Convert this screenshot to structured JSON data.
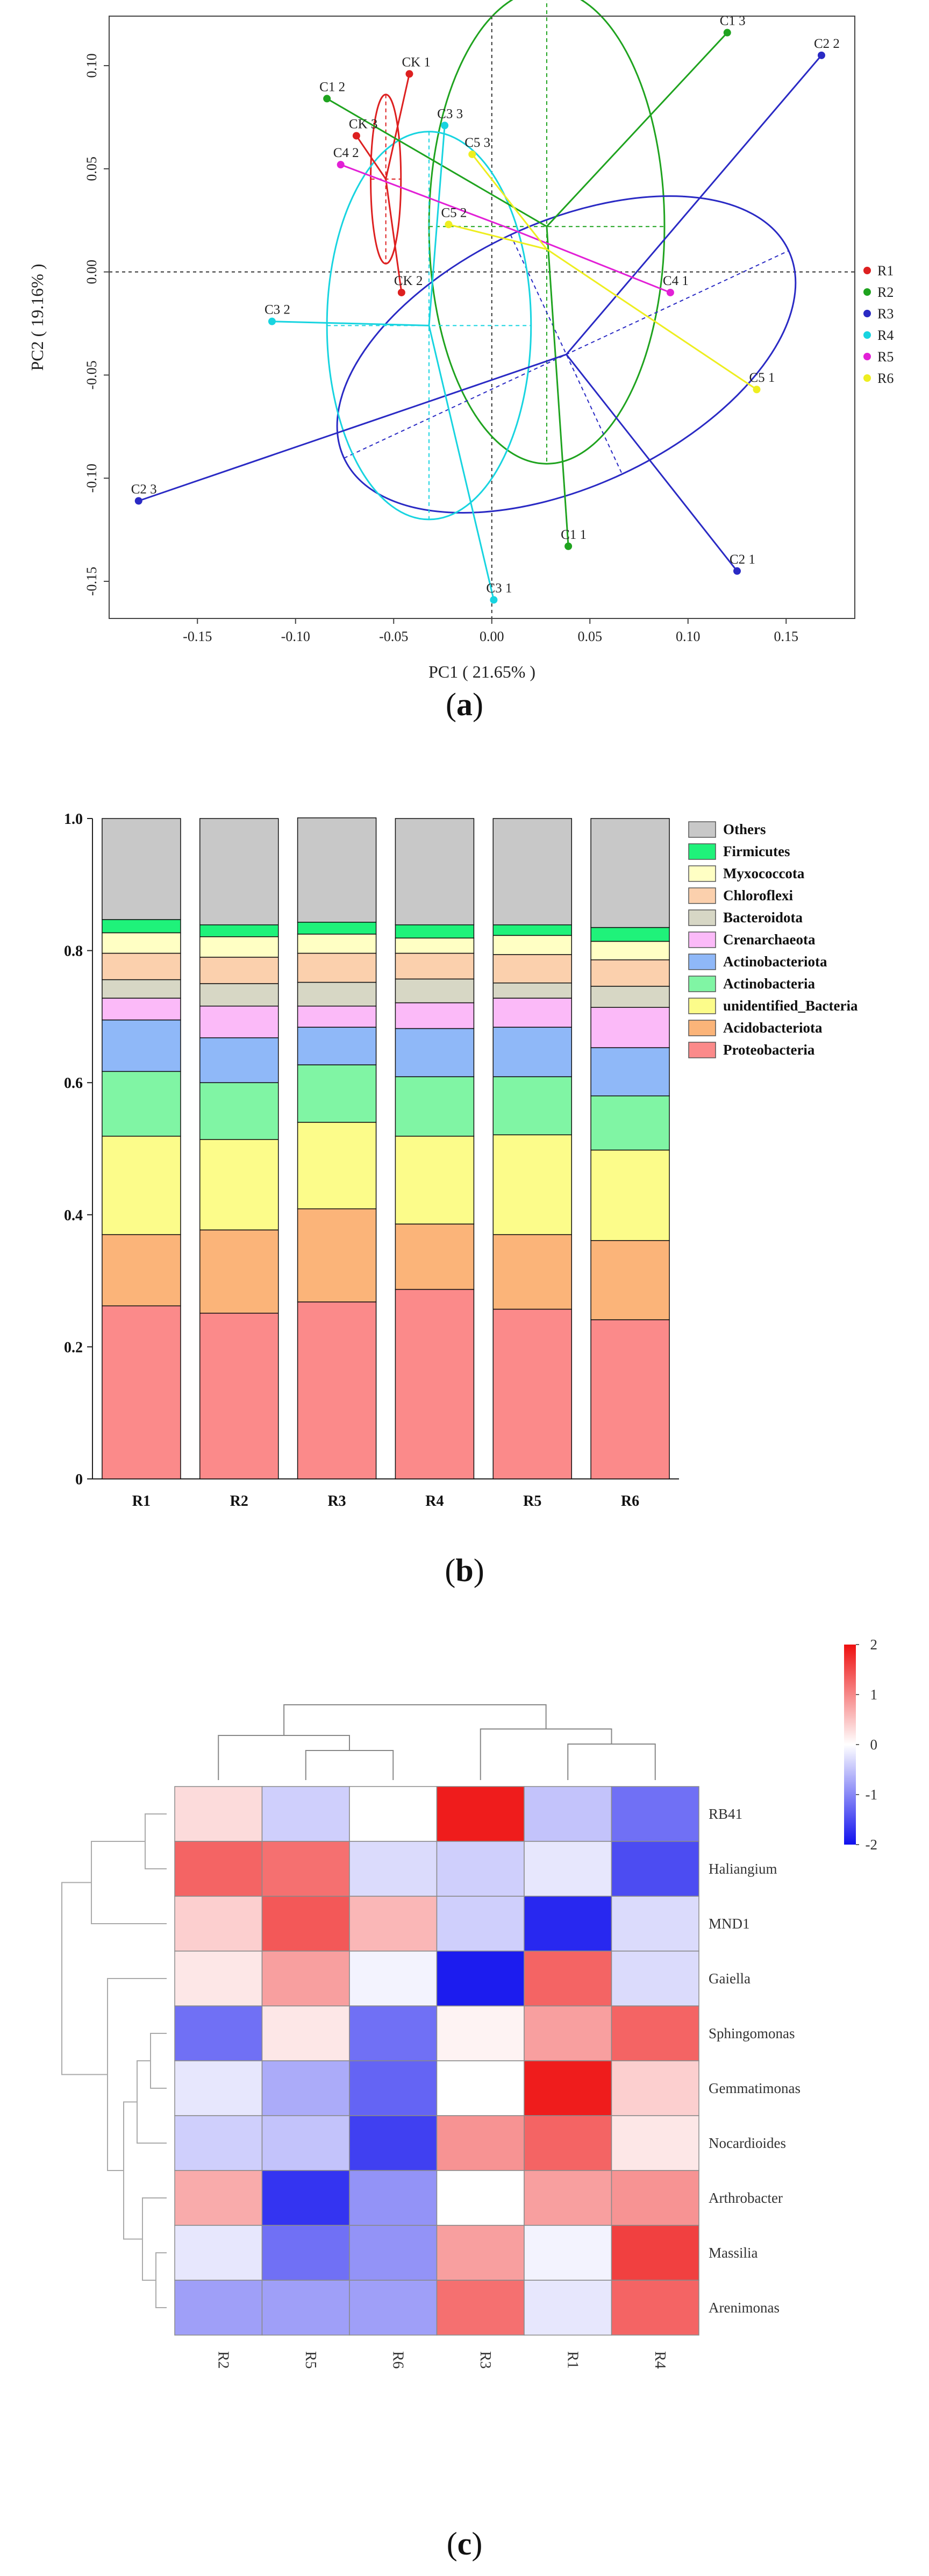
{
  "panels": {
    "a": {
      "caption_open": "(",
      "caption_letter": "a",
      "caption_close": ")",
      "chart_data": {
        "type": "scatter",
        "xlabel": "PC1 ( 21.65% )",
        "ylabel": "PC2 ( 19.16% )",
        "xlim": [
          -0.195,
          0.185
        ],
        "ylim": [
          -0.168,
          0.124
        ],
        "xticks": [
          -0.15,
          -0.1,
          -0.05,
          0.0,
          0.05,
          0.1,
          0.15
        ],
        "xtick_labels": [
          "-0.15",
          "-0.10",
          "-0.05",
          "0.00",
          "0.05",
          "0.10",
          "0.15"
        ],
        "yticks": [
          0.1,
          0.05,
          0.0,
          -0.05,
          -0.1,
          -0.15
        ],
        "ytick_labels": [
          "0.10",
          "0.05",
          "0.00",
          "-0.05",
          "-0.10",
          "-0.15"
        ],
        "grid": false,
        "legend_position": "right",
        "groups": [
          {
            "name": "R1",
            "color": "#dd2020",
            "centroid": [
              -0.054,
              0.045
            ],
            "ellipse": {
              "rx": 0.0077,
              "ry": 0.041,
              "angle": 0
            },
            "points": [
              {
                "label": "CK 1",
                "x": -0.042,
                "y": 0.096
              },
              {
                "label": "CK 3",
                "x": -0.069,
                "y": 0.066
              },
              {
                "label": "CK 2",
                "x": -0.046,
                "y": -0.01
              }
            ]
          },
          {
            "name": "R2",
            "color": "#1fa31f",
            "centroid": [
              0.028,
              0.022
            ],
            "ellipse": {
              "rx": 0.06,
              "ry": 0.115,
              "angle": 0
            },
            "points": [
              {
                "label": "C1 3",
                "x": 0.12,
                "y": 0.116
              },
              {
                "label": "C1 2",
                "x": -0.084,
                "y": 0.084
              },
              {
                "label": "C1 1",
                "x": 0.039,
                "y": -0.133
              }
            ]
          },
          {
            "name": "R3",
            "color": "#2a2ac4",
            "centroid": [
              0.038,
              -0.04
            ],
            "ellipse": {
              "rx": 0.125,
              "ry": 0.064,
              "angle": -25
            },
            "points": [
              {
                "label": "C2 2",
                "x": 0.168,
                "y": 0.105
              },
              {
                "label": "C2 1",
                "x": 0.125,
                "y": -0.145
              },
              {
                "label": "C2 3",
                "x": -0.18,
                "y": -0.111
              }
            ]
          },
          {
            "name": "R4",
            "color": "#18d4e0",
            "centroid": [
              -0.032,
              -0.026
            ],
            "ellipse": {
              "rx": 0.052,
              "ry": 0.094,
              "angle": 0
            },
            "points": [
              {
                "label": "C3 3",
                "x": -0.024,
                "y": 0.071
              },
              {
                "label": "C3 2",
                "x": -0.112,
                "y": -0.024
              },
              {
                "label": "C3 1",
                "x": 0.001,
                "y": -0.159
              }
            ]
          },
          {
            "name": "R5",
            "color": "#e220d6",
            "centroid": [
              0.012,
              0.02
            ],
            "ellipse": null,
            "points": [
              {
                "label": "C4 2",
                "x": -0.077,
                "y": 0.052
              },
              {
                "label": "C4 1",
                "x": 0.091,
                "y": -0.01
              }
            ]
          },
          {
            "name": "R6",
            "color": "#eeee20",
            "centroid": [
              0.028,
              0.011
            ],
            "ellipse": null,
            "points": [
              {
                "label": "C5 3",
                "x": -0.01,
                "y": 0.057
              },
              {
                "label": "C5 2",
                "x": -0.022,
                "y": 0.023
              },
              {
                "label": "C5 1",
                "x": 0.135,
                "y": -0.057
              }
            ]
          }
        ]
      }
    },
    "b": {
      "caption_open": "(",
      "caption_letter": "b",
      "caption_close": ")",
      "chart_data": {
        "type": "bar",
        "stacked": true,
        "categories": [
          "R1",
          "R2",
          "R3",
          "R4",
          "R5",
          "R6"
        ],
        "ylim": [
          0,
          1
        ],
        "yticks": [
          0,
          0.2,
          0.4,
          0.6,
          0.8,
          1.0
        ],
        "ytick_labels": [
          "0",
          "0.2",
          "0.4",
          "0.6",
          "0.8",
          "1.0"
        ],
        "legend_position": "right",
        "series": [
          {
            "name": "Proteobacteria",
            "color": "#fb8a8a",
            "values": [
              0.262,
              0.251,
              0.268,
              0.287,
              0.257,
              0.241
            ]
          },
          {
            "name": "Acidobacteriota",
            "color": "#fbb479",
            "values": [
              0.108,
              0.126,
              0.141,
              0.099,
              0.113,
              0.12
            ]
          },
          {
            "name": "unidentified_Bacteria",
            "color": "#fcfc8a",
            "values": [
              0.149,
              0.137,
              0.131,
              0.133,
              0.151,
              0.137
            ]
          },
          {
            "name": "Actinobacteria",
            "color": "#80f5a4",
            "values": [
              0.098,
              0.086,
              0.087,
              0.09,
              0.088,
              0.082
            ]
          },
          {
            "name": "Actinobacteriota",
            "color": "#8fb8f8",
            "values": [
              0.078,
              0.068,
              0.057,
              0.073,
              0.075,
              0.073
            ]
          },
          {
            "name": "Crenarchaeota",
            "color": "#fbbaf8",
            "values": [
              0.033,
              0.048,
              0.032,
              0.039,
              0.044,
              0.061
            ]
          },
          {
            "name": "Bacteroidota",
            "color": "#d7d7c5",
            "values": [
              0.028,
              0.034,
              0.036,
              0.036,
              0.023,
              0.032
            ]
          },
          {
            "name": "Chloroflexi",
            "color": "#fbd0ad",
            "values": [
              0.04,
              0.04,
              0.044,
              0.039,
              0.043,
              0.04
            ]
          },
          {
            "name": "Myxococcota",
            "color": "#ffffc4",
            "values": [
              0.031,
              0.031,
              0.029,
              0.023,
              0.029,
              0.028
            ]
          },
          {
            "name": "Firmicutes",
            "color": "#1ff27a",
            "values": [
              0.02,
              0.018,
              0.018,
              0.02,
              0.016,
              0.021
            ]
          },
          {
            "name": "Others",
            "color": "#c8c8c8",
            "values": [
              0.153,
              0.161,
              0.158,
              0.161,
              0.161,
              0.165
            ]
          }
        ]
      }
    },
    "c": {
      "caption_open": "(",
      "caption_letter": "c",
      "caption_close": ")",
      "chart_data": {
        "type": "heatmap",
        "columns": [
          "R2",
          "R5",
          "R6",
          "R3",
          "R1",
          "R4"
        ],
        "rows": [
          "RB41",
          "Haliangium",
          "MND1",
          "Gaiella",
          "Sphingomonas",
          "Gemmatimonas",
          "Nocardioides",
          "Arthrobacter",
          "Massilia",
          "Arenimonas"
        ],
        "values": [
          [
            0.3,
            -0.4,
            0.0,
            1.9,
            -0.5,
            -1.2
          ],
          [
            1.3,
            1.2,
            -0.3,
            -0.4,
            -0.2,
            -1.5
          ],
          [
            0.4,
            1.4,
            0.6,
            -0.4,
            -1.8,
            -0.3
          ],
          [
            0.2,
            0.8,
            -0.1,
            -1.9,
            1.3,
            -0.3
          ],
          [
            -1.2,
            0.2,
            -1.2,
            0.1,
            0.8,
            1.3
          ],
          [
            -0.2,
            -0.7,
            -1.3,
            0.0,
            1.9,
            0.4
          ],
          [
            -0.4,
            -0.5,
            -1.6,
            0.9,
            1.3,
            0.2
          ],
          [
            0.7,
            -1.7,
            -0.9,
            0.0,
            0.8,
            0.9
          ],
          [
            -0.2,
            -1.2,
            -0.9,
            0.8,
            -0.1,
            1.6
          ],
          [
            -0.8,
            -0.8,
            -0.8,
            1.2,
            -0.2,
            1.3
          ]
        ],
        "colorbar": {
          "min": -2,
          "max": 2,
          "ticks": [
            2,
            1,
            0,
            -1,
            -2
          ],
          "tick_labels": [
            "2",
            "1",
            "0",
            "-1",
            "-2"
          ],
          "low_color": "#1010ee",
          "mid_color": "#ffffff",
          "high_color": "#ee1010"
        }
      }
    }
  }
}
